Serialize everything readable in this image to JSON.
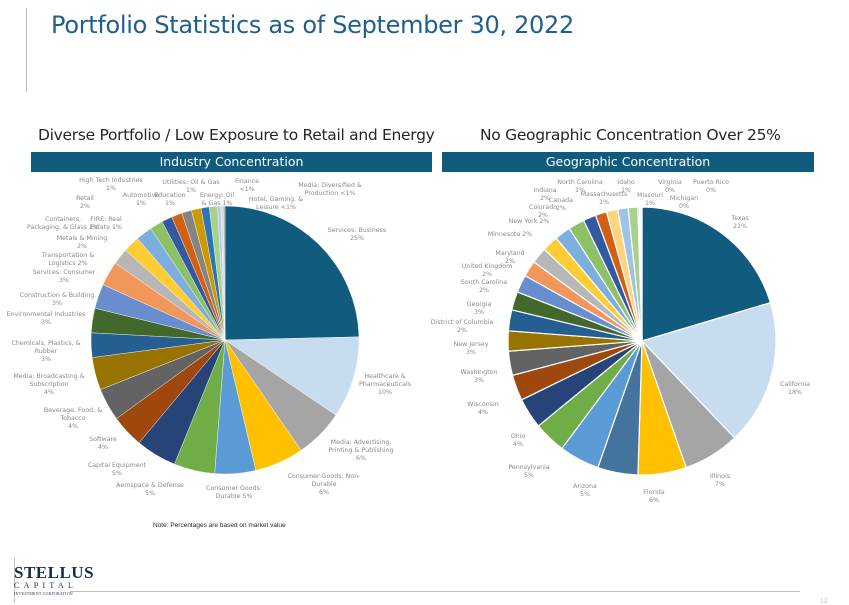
{
  "header": {
    "title": "Portfolio Statistics as of September 30, 2022"
  },
  "left_panel": {
    "subtitle": "Diverse Portfolio / Low Exposure to Retail and Energy",
    "banner": "Industry Concentration",
    "note": "Note: Percentages are based on market value"
  },
  "right_panel": {
    "subtitle": "No Geographic Concentration Over 25%",
    "banner": "Geographic Concentration"
  },
  "footer": {
    "logo_main": "STELLUS",
    "logo_sub": "CAPITAL",
    "logo_tag": "INVESTMENT CORPORATION",
    "page_number": "12"
  },
  "chart_data": [
    {
      "type": "pie",
      "title": "Industry Concentration",
      "start": "12 o'clock, clockwise",
      "slices": [
        {
          "label": "Services: Business",
          "pct_label": "25%",
          "value": 25.0,
          "color": "#115c7e"
        },
        {
          "label": "Healthcare & Pharmaceuticals",
          "pct_label": "10%",
          "value": 10.0,
          "color": "#c8dcef"
        },
        {
          "label": "Media: Advertising, Printing & Publishing",
          "pct_label": "6%",
          "value": 6.0,
          "color": "#a5a5a5"
        },
        {
          "label": "Consumer Goods: Non-Durable",
          "pct_label": "6%",
          "value": 6.0,
          "color": "#ffc000"
        },
        {
          "label": "Consumer Goods: Durable",
          "pct_label": "5%",
          "value": 5.0,
          "color": "#5b9bd5"
        },
        {
          "label": "Aerospace & Defense",
          "pct_label": "5%",
          "value": 5.0,
          "color": "#70ad47"
        },
        {
          "label": "Capital Equipment",
          "pct_label": "5%",
          "value": 5.0,
          "color": "#264478"
        },
        {
          "label": "Software",
          "pct_label": "4%",
          "value": 4.0,
          "color": "#9e480e"
        },
        {
          "label": "Beverage, Food, & Tobacco",
          "pct_label": "4%",
          "value": 4.0,
          "color": "#636363"
        },
        {
          "label": "Media: Broadcasting & Subscription",
          "pct_label": "4%",
          "value": 4.0,
          "color": "#997300"
        },
        {
          "label": "Chemicals, Plastics, & Rubber",
          "pct_label": "3%",
          "value": 3.0,
          "color": "#255e91"
        },
        {
          "label": "Environmental Industries",
          "pct_label": "3%",
          "value": 3.0,
          "color": "#43682b"
        },
        {
          "label": "Construction & Building",
          "pct_label": "3%",
          "value": 3.0,
          "color": "#698ed0"
        },
        {
          "label": "Services: Consumer",
          "pct_label": "3%",
          "value": 3.0,
          "color": "#f1975a"
        },
        {
          "label": "Transportation & Logistics",
          "pct_label": "2%",
          "value": 2.0,
          "color": "#b7b7b7"
        },
        {
          "label": "Metals & Mining",
          "pct_label": "2%",
          "value": 2.0,
          "color": "#ffcd33"
        },
        {
          "label": "Containers, Packaging, & Glass",
          "pct_label": "2%",
          "value": 2.0,
          "color": "#7cafdd"
        },
        {
          "label": "Retail",
          "pct_label": "2%",
          "value": 1.6,
          "color": "#8cc168"
        },
        {
          "label": "FIRE: Real Estate",
          "pct_label": "1%",
          "value": 1.3,
          "color": "#335aa1"
        },
        {
          "label": "High Tech Industries",
          "pct_label": "1%",
          "value": 1.3,
          "color": "#d26012"
        },
        {
          "label": "Automotive",
          "pct_label": "1%",
          "value": 1.2,
          "color": "#848484"
        },
        {
          "label": "Education",
          "pct_label": "1%",
          "value": 1.2,
          "color": "#cc9a00"
        },
        {
          "label": "Utilities: Oil & Gas",
          "pct_label": "1%",
          "value": 1.0,
          "color": "#2e75b6"
        },
        {
          "label": "Energy: Oil & Gas",
          "pct_label": "1%",
          "value": 1.0,
          "color": "#a9d18e"
        },
        {
          "label": "Finance",
          "pct_label": "<1%",
          "value": 0.4,
          "color": "#b4c7e7"
        },
        {
          "label": "Hotel, Gaming, & Leisure",
          "pct_label": "<1%",
          "value": 0.3,
          "color": "#d9d9d9"
        },
        {
          "label": "Media: Diversified & Production",
          "pct_label": "<1%",
          "value": 0.2,
          "color": "#a6a6a6"
        }
      ]
    },
    {
      "type": "pie",
      "title": "Geographic Concentration",
      "start": "12 o'clock, clockwise",
      "slices": [
        {
          "label": "Texas",
          "pct_label": "21%",
          "value": 21.0,
          "color": "#115c7e"
        },
        {
          "label": "California",
          "pct_label": "18%",
          "value": 18.0,
          "color": "#c8dcef"
        },
        {
          "label": "Illinois",
          "pct_label": "7%",
          "value": 7.0,
          "color": "#a5a5a5"
        },
        {
          "label": "Florida",
          "pct_label": "6%",
          "value": 6.0,
          "color": "#ffc000"
        },
        {
          "label": "Arizona",
          "pct_label": "5%",
          "value": 5.0,
          "color": "#44749d"
        },
        {
          "label": "Pennsylvania",
          "pct_label": "5%",
          "value": 5.0,
          "color": "#5b9bd5"
        },
        {
          "label": "Ohio",
          "pct_label": "4%",
          "value": 4.0,
          "color": "#70ad47"
        },
        {
          "label": "Wisconsin",
          "pct_label": "4%",
          "value": 3.8,
          "color": "#264478"
        },
        {
          "label": "Washington",
          "pct_label": "3%",
          "value": 3.2,
          "color": "#9e480e"
        },
        {
          "label": "New Jersey",
          "pct_label": "3%",
          "value": 3.0,
          "color": "#636363"
        },
        {
          "label": "District of Columbia",
          "pct_label": "2%",
          "value": 2.5,
          "color": "#997300"
        },
        {
          "label": "Georgia",
          "pct_label": "3%",
          "value": 2.6,
          "color": "#255e91"
        },
        {
          "label": "South Carolina",
          "pct_label": "2%",
          "value": 2.3,
          "color": "#43682b"
        },
        {
          "label": "United Kingdom",
          "pct_label": "2%",
          "value": 2.2,
          "color": "#698ed0"
        },
        {
          "label": "Maryland",
          "pct_label": "2%",
          "value": 2.0,
          "color": "#f1975a"
        },
        {
          "label": "Minnesota",
          "pct_label": "2%",
          "value": 2.0,
          "color": "#b7b7b7"
        },
        {
          "label": "New York",
          "pct_label": "2%",
          "value": 2.0,
          "color": "#ffcd33"
        },
        {
          "label": "Colorado",
          "pct_label": "2%",
          "value": 2.0,
          "color": "#7cafdd"
        },
        {
          "label": "Canada",
          "pct_label": "2%",
          "value": 2.0,
          "color": "#8cc168"
        },
        {
          "label": "Indiana",
          "pct_label": "2%",
          "value": 1.6,
          "color": "#335aa1"
        },
        {
          "label": "North Carolina",
          "pct_label": "1%",
          "value": 1.4,
          "color": "#d26012"
        },
        {
          "label": "Massachusetts",
          "pct_label": "1%",
          "value": 1.4,
          "color": "#ffd480"
        },
        {
          "label": "Idaho",
          "pct_label": "1%",
          "value": 1.3,
          "color": "#9dc3e6"
        },
        {
          "label": "Missouri",
          "pct_label": "1%",
          "value": 1.2,
          "color": "#a9d18e"
        },
        {
          "label": "Virginia",
          "pct_label": "0%",
          "value": 0.2,
          "color": "#b4c7e7"
        },
        {
          "label": "Michigan",
          "pct_label": "0%",
          "value": 0.2,
          "color": "#d9d9d9"
        },
        {
          "label": "Puerto Rico",
          "pct_label": "0%",
          "value": 0.1,
          "color": "#a6a6a6"
        }
      ]
    }
  ]
}
